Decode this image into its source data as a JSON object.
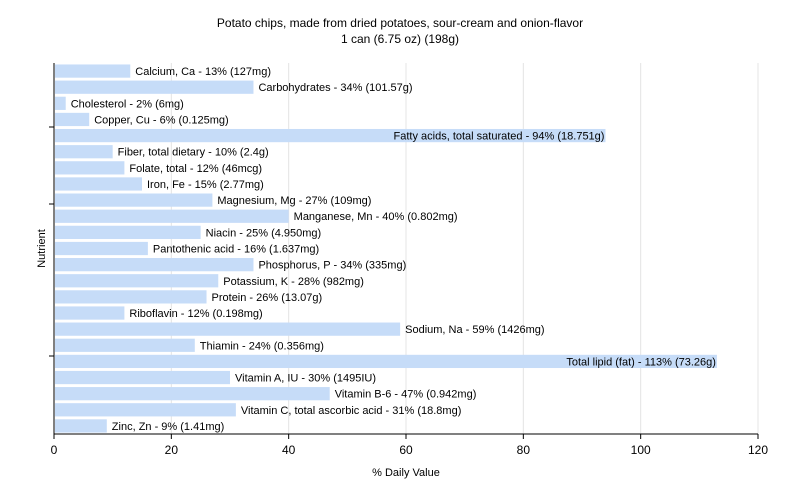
{
  "chart_data": {
    "type": "bar",
    "orientation": "horizontal",
    "title": "Potato chips, made from dried potatoes, sour-cream and onion-flavor",
    "subtitle": "1 can (6.75 oz) (198g)",
    "xlabel": "% Daily Value",
    "ylabel": "Nutrient",
    "xlim": [
      0,
      120
    ],
    "xticks": [
      0,
      20,
      40,
      60,
      80,
      100,
      120
    ],
    "grid": true,
    "bar_color": "#c6dcf8",
    "categories": [
      "Calcium, Ca",
      "Carbohydrates",
      "Cholesterol",
      "Copper, Cu",
      "Fatty acids, total saturated",
      "Fiber, total dietary",
      "Folate, total",
      "Iron, Fe",
      "Magnesium, Mg",
      "Manganese, Mn",
      "Niacin",
      "Pantothenic acid",
      "Phosphorus, P",
      "Potassium, K",
      "Protein",
      "Riboflavin",
      "Sodium, Na",
      "Thiamin",
      "Total lipid (fat)",
      "Vitamin A, IU",
      "Vitamin B-6",
      "Vitamin C, total ascorbic acid",
      "Zinc, Zn"
    ],
    "values": [
      13,
      34,
      2,
      6,
      94,
      10,
      12,
      15,
      27,
      40,
      25,
      16,
      34,
      28,
      26,
      12,
      59,
      24,
      113,
      30,
      47,
      31,
      9
    ],
    "labels": [
      "Calcium, Ca - 13% (127mg)",
      "Carbohydrates - 34% (101.57g)",
      "Cholesterol - 2% (6mg)",
      "Copper, Cu - 6% (0.125mg)",
      "Fatty acids, total saturated - 94% (18.751g)",
      "Fiber, total dietary - 10% (2.4g)",
      "Folate, total - 12% (46mcg)",
      "Iron, Fe - 15% (2.77mg)",
      "Magnesium, Mg - 27% (109mg)",
      "Manganese, Mn - 40% (0.802mg)",
      "Niacin - 25% (4.950mg)",
      "Pantothenic acid - 16% (1.637mg)",
      "Phosphorus, P - 34% (335mg)",
      "Potassium, K - 28% (982mg)",
      "Protein - 26% (13.07g)",
      "Riboflavin - 12% (0.198mg)",
      "Sodium, Na - 59% (1426mg)",
      "Thiamin - 24% (0.356mg)",
      "Total lipid (fat) - 113% (73.26g)",
      "Vitamin A, IU - 30% (1495IU)",
      "Vitamin B-6 - 47% (0.942mg)",
      "Vitamin C, total ascorbic acid - 31% (18.8mg)",
      "Zinc, Zn - 9% (1.41mg)"
    ]
  }
}
